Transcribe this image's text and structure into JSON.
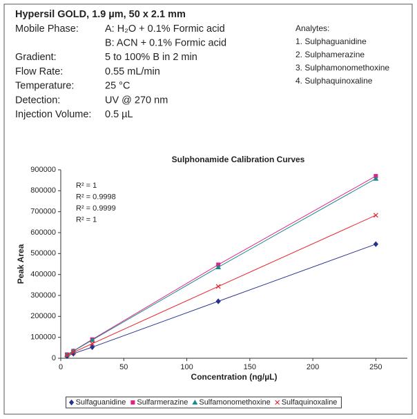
{
  "title": "Hypersil GOLD, 1.9 µm, 50 x 2.1 mm",
  "conditions": [
    {
      "label": "Mobile Phase:",
      "value": "A: H₂O + 0.1% Formic acid"
    },
    {
      "label": null,
      "value": "B: ACN + 0.1% Formic acid"
    },
    {
      "label": "Gradient:",
      "value": "5 to 100% B in 2 min"
    },
    {
      "label": "Flow Rate:",
      "value": "0.55 mL/min"
    },
    {
      "label": "Temperature:",
      "value": "25 °C"
    },
    {
      "label": "Detection:",
      "value": "UV @ 270 nm"
    },
    {
      "label": "Injection Volume:",
      "value": "0.5 µL"
    }
  ],
  "analytes": {
    "title": "Analytes:",
    "items": [
      "1. Sulphaguanidine",
      "2. Sulphamerazine",
      "3. Sulphamonomethoxine",
      "4. Sulphaquinoxaline"
    ]
  },
  "chart_data": {
    "type": "line",
    "title": "Sulphonamide Calibration Curves",
    "x_label": "Concentration (ng/µL)",
    "y_label": "Peak Area",
    "annotations": [
      "R² = 1",
      "R² = 0.9998",
      "R² = 0.9999",
      "R² = 1"
    ],
    "x": [
      5,
      10,
      25,
      125,
      250
    ],
    "series": [
      {
        "name": "Sulfaguanidine",
        "color": "#25318f",
        "marker": "diamond",
        "values": [
          10000,
          22000,
          53000,
          272000,
          545000
        ]
      },
      {
        "name": "Sulfarmerazine",
        "color": "#e0218a",
        "marker": "square",
        "values": [
          18000,
          35000,
          90000,
          447000,
          870000
        ]
      },
      {
        "name": "Sulfamonomethoxine",
        "color": "#1a8a8a",
        "marker": "triangle",
        "values": [
          17000,
          34000,
          87000,
          435000,
          858000
        ]
      },
      {
        "name": "Sulfaquinoxaline",
        "color": "#e8202a",
        "marker": "x",
        "values": [
          14000,
          28000,
          70000,
          343000,
          683000
        ]
      }
    ],
    "xlim": [
      0,
      275
    ],
    "xticks": [
      0,
      50,
      100,
      150,
      200,
      250
    ],
    "ylim": [
      0,
      900000
    ],
    "yticks": [
      0,
      100000,
      200000,
      300000,
      400000,
      500000,
      600000,
      700000,
      800000,
      900000
    ],
    "legend": "bottom"
  }
}
